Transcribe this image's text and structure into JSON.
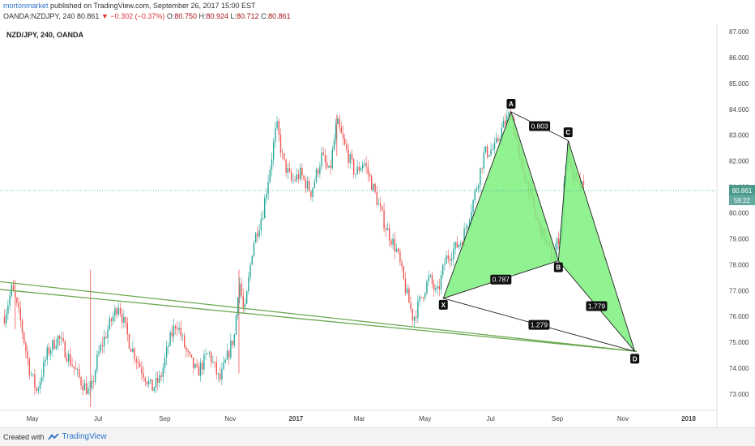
{
  "header": {
    "author": "mortonmarket",
    "published_text": "published on TradingView.com, September 26, 2017 15:00 EST",
    "ohlc_symbol": "OANDA:NZDJPY, 240",
    "last": "80.861",
    "change": "▼ −0.302 (−0.37%)",
    "open_label": "O:",
    "open": "80.750",
    "high_label": "H:",
    "high": "80.924",
    "low_label": "L:",
    "low": "80.712",
    "close_label": "C:",
    "close": "80.861"
  },
  "footer": {
    "created_with": "Created with",
    "brand": "TradingView",
    "brand_icon": "tradingview-logo-icon"
  },
  "colors": {
    "up": "#26a69a",
    "down": "#ef5350",
    "pattern_fill": "#7ef07e",
    "trendline": "#6aa84f",
    "price_line": "#26a69a",
    "price_tag": "#4a9b8e"
  },
  "chart_data": {
    "type": "candlestick",
    "symbol_label": "NZD/JPY, 240, OANDA",
    "y_ticks": [
      "73.000",
      "74.000",
      "75.000",
      "76.000",
      "77.000",
      "78.000",
      "79.000",
      "80.000",
      "81.000",
      "82.000",
      "83.000",
      "84.000",
      "85.000",
      "86.000",
      "87.000"
    ],
    "y_range": [
      72.0,
      87.3
    ],
    "x_ticks": [
      "May",
      "Jul",
      "Sep",
      "Nov",
      "2017",
      "Mar",
      "May",
      "Jul",
      "Sep",
      "Nov",
      "2018"
    ],
    "x_tick_dates": [
      "2016-05",
      "2016-07",
      "2016-09",
      "2016-11",
      "2017-01",
      "2017-03",
      "2017-05",
      "2017-07",
      "2017-09",
      "2017-11",
      "2018-01"
    ],
    "last_price_tag": "80.861",
    "countdown_tag": "59:22",
    "last_price": 80.861,
    "price_path": [
      [
        "2016-04-05",
        76.0
      ],
      [
        "2016-04-12",
        77.1
      ],
      [
        "2016-04-20",
        75.8
      ],
      [
        "2016-04-28",
        74.0
      ],
      [
        "2016-05-05",
        73.1
      ],
      [
        "2016-05-15",
        74.6
      ],
      [
        "2016-05-25",
        75.2
      ],
      [
        "2016-06-05",
        74.3
      ],
      [
        "2016-06-15",
        73.5
      ],
      [
        "2016-06-24",
        73.0
      ],
      [
        "2016-07-01",
        74.5
      ],
      [
        "2016-07-10",
        75.5
      ],
      [
        "2016-07-20",
        76.5
      ],
      [
        "2016-07-30",
        75.0
      ],
      [
        "2016-08-10",
        74.0
      ],
      [
        "2016-08-20",
        73.2
      ],
      [
        "2016-08-28",
        73.6
      ],
      [
        "2016-09-05",
        75.0
      ],
      [
        "2016-09-12",
        75.8
      ],
      [
        "2016-09-22",
        74.5
      ],
      [
        "2016-10-01",
        73.8
      ],
      [
        "2016-10-12",
        74.6
      ],
      [
        "2016-10-22",
        73.5
      ],
      [
        "2016-11-01",
        74.8
      ],
      [
        "2016-11-05",
        75.3
      ],
      [
        "2016-11-09",
        77.5
      ],
      [
        "2016-11-14",
        76.0
      ],
      [
        "2016-11-22",
        78.8
      ],
      [
        "2016-12-01",
        80.0
      ],
      [
        "2016-12-08",
        81.8
      ],
      [
        "2016-12-14",
        83.4
      ],
      [
        "2016-12-20",
        82.0
      ],
      [
        "2016-12-28",
        81.2
      ],
      [
        "2017-01-05",
        81.5
      ],
      [
        "2017-01-15",
        80.8
      ],
      [
        "2017-01-25",
        82.2
      ],
      [
        "2017-02-01",
        81.5
      ],
      [
        "2017-02-08",
        83.5
      ],
      [
        "2017-02-15",
        82.6
      ],
      [
        "2017-02-25",
        81.5
      ],
      [
        "2017-03-05",
        82.0
      ],
      [
        "2017-03-15",
        80.8
      ],
      [
        "2017-03-25",
        79.5
      ],
      [
        "2017-04-05",
        78.5
      ],
      [
        "2017-04-12",
        77.2
      ],
      [
        "2017-04-20",
        75.9
      ],
      [
        "2017-04-28",
        76.8
      ],
      [
        "2017-05-05",
        77.5
      ],
      [
        "2017-05-12",
        76.8
      ],
      [
        "2017-05-20",
        78.2
      ],
      [
        "2017-05-28",
        78.6
      ],
      [
        "2017-06-05",
        79.0
      ],
      [
        "2017-06-15",
        80.5
      ],
      [
        "2017-06-25",
        82.3
      ],
      [
        "2017-07-05",
        82.5
      ],
      [
        "2017-07-12",
        83.3
      ],
      [
        "2017-07-20",
        83.9
      ],
      [
        "2017-07-28",
        82.0
      ],
      [
        "2017-08-05",
        81.0
      ],
      [
        "2017-08-12",
        79.8
      ],
      [
        "2017-08-20",
        79.0
      ],
      [
        "2017-08-28",
        78.2
      ],
      [
        "2017-09-05",
        79.5
      ],
      [
        "2017-09-10",
        82.8
      ],
      [
        "2017-09-14",
        81.5
      ],
      [
        "2017-09-19",
        81.2
      ],
      [
        "2017-09-26",
        80.86
      ]
    ],
    "harmonic_pattern": {
      "points": [
        {
          "label": "X",
          "date": "2017-05-18",
          "price": 76.7
        },
        {
          "label": "A",
          "date": "2017-07-20",
          "price": 83.9
        },
        {
          "label": "B",
          "date": "2017-09-02",
          "price": 78.15
        },
        {
          "label": "C",
          "date": "2017-09-11",
          "price": 82.8
        },
        {
          "label": "D",
          "date": "2017-11-12",
          "price": 74.65
        }
      ],
      "ratios": [
        {
          "label": "0.787",
          "from": "X",
          "to": "B"
        },
        {
          "label": "0.803",
          "from": "A",
          "to": "C"
        },
        {
          "label": "1.279",
          "from": "X",
          "to": "D"
        },
        {
          "label": "1.779",
          "from": "B",
          "to": "D"
        }
      ]
    },
    "trendlines": [
      {
        "from": [
          "2016-03-30",
          77.35
        ],
        "to": [
          "2017-11-14",
          74.65
        ]
      },
      {
        "from": [
          "2016-03-30",
          77.05
        ],
        "to": [
          "2017-11-14",
          74.65
        ]
      }
    ]
  }
}
